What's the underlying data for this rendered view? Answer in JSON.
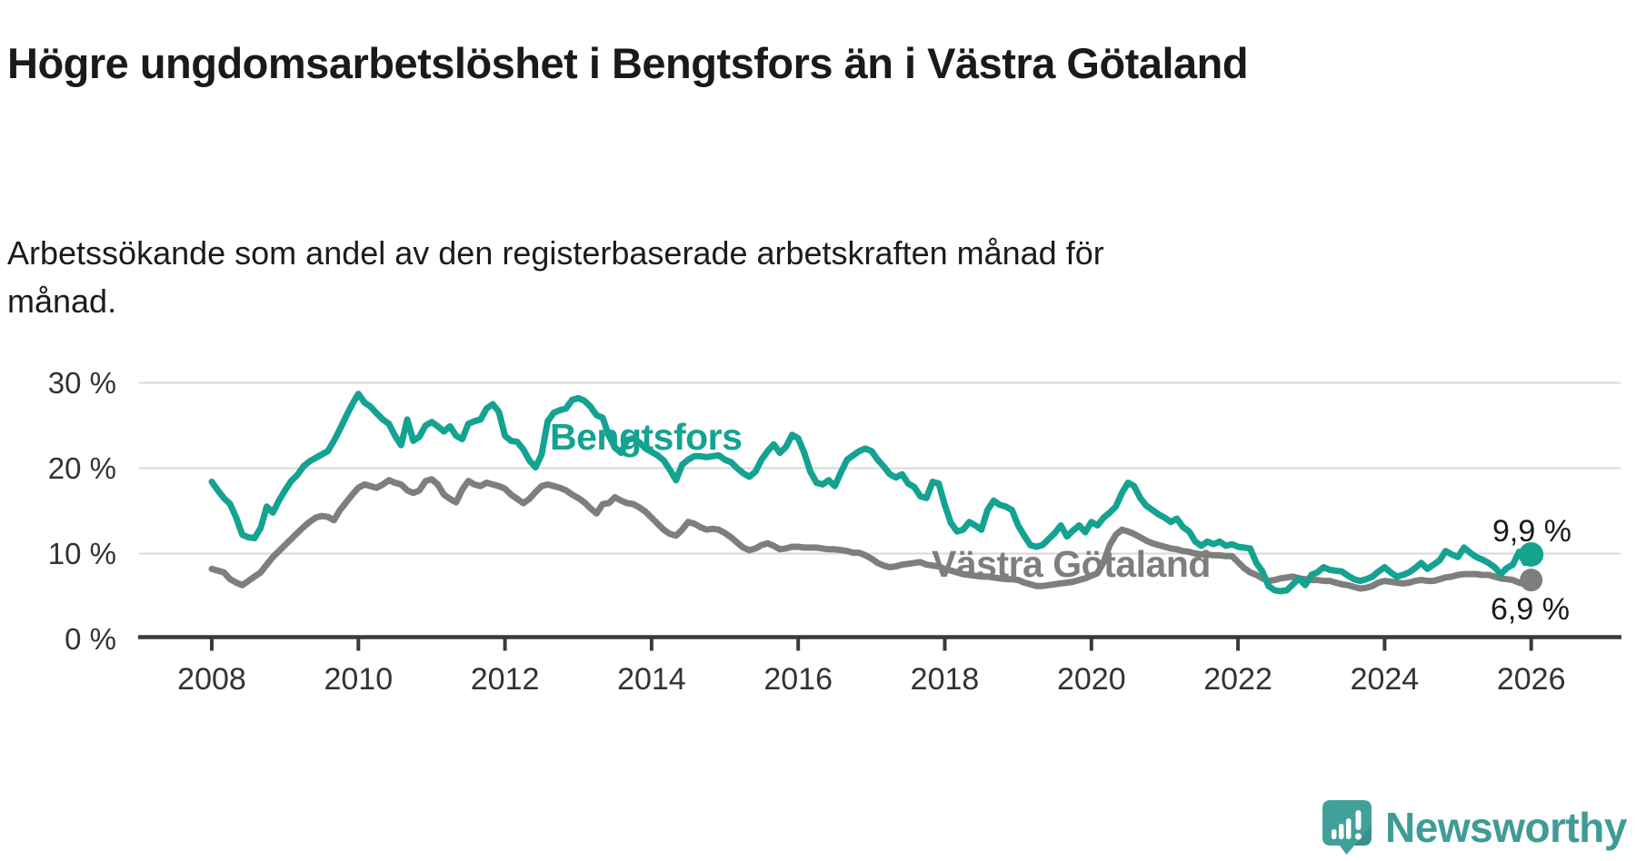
{
  "title": "Högre ungdomsarbetslöshet i Bengtsfors än i Västra Götaland",
  "subtitle": "Arbetssökande som andel av den registerbaserade arbetskraften månad för månad.",
  "footer": {
    "brand": "Newsworthy"
  },
  "colors": {
    "bengtsfors": "#14A291",
    "vastra_gotaland": "#7E7E7E",
    "gridline": "#D8D8D8",
    "axis": "#3A3A3A",
    "text": "#333333",
    "logo": "#3E9C95"
  },
  "chart_data": {
    "type": "line",
    "title": "Högre ungdomsarbetslöshet i Bengtsfors än i Västra Götaland",
    "subtitle": "Arbetssökande som andel av den registerbaserade arbetskraften månad för månad.",
    "unit": "%",
    "frequency": "monthly",
    "x_start": "2008-01",
    "x_end": "2026-01",
    "x_ticks": [
      "2008",
      "2010",
      "2012",
      "2014",
      "2016",
      "2018",
      "2020",
      "2022",
      "2024",
      "2026"
    ],
    "y_ticks": [
      "0 %",
      "10 %",
      "20 %",
      "30 %"
    ],
    "ylim": [
      0,
      31.5
    ],
    "grid": "horizontal",
    "legend_position": "inline-labels",
    "end_labels": {
      "bengtsfors": "9,9 %",
      "vastra_gotaland": "6,9 %"
    },
    "series": [
      {
        "name": "Västra Götaland",
        "color": "#7E7E7E",
        "values": [
          8.2,
          8.0,
          7.8,
          7.0,
          6.6,
          6.3,
          6.8,
          7.3,
          7.8,
          8.7,
          9.6,
          10.3,
          11.0,
          11.7,
          12.4,
          13.1,
          13.7,
          14.2,
          14.4,
          14.3,
          13.9,
          15.1,
          16.0,
          16.9,
          17.7,
          18.1,
          17.9,
          17.7,
          18.1,
          18.6,
          18.3,
          18.1,
          17.4,
          17.1,
          17.4,
          18.5,
          18.7,
          18.1,
          16.9,
          16.4,
          16.0,
          17.5,
          18.5,
          18.1,
          17.9,
          18.3,
          18.1,
          17.9,
          17.6,
          16.9,
          16.4,
          15.9,
          16.4,
          17.2,
          17.9,
          18.1,
          17.9,
          17.7,
          17.4,
          16.9,
          16.5,
          16.0,
          15.3,
          14.7,
          15.8,
          15.9,
          16.6,
          16.2,
          15.9,
          15.8,
          15.4,
          14.9,
          14.2,
          13.5,
          12.8,
          12.3,
          12.1,
          12.8,
          13.7,
          13.5,
          13.1,
          12.8,
          12.9,
          12.8,
          12.4,
          11.9,
          11.3,
          10.7,
          10.4,
          10.6,
          11.0,
          11.2,
          10.9,
          10.5,
          10.6,
          10.8,
          10.8,
          10.7,
          10.7,
          10.7,
          10.6,
          10.5,
          10.5,
          10.4,
          10.3,
          10.1,
          10.1,
          9.8,
          9.4,
          8.9,
          8.6,
          8.4,
          8.5,
          8.7,
          8.8,
          8.9,
          9.0,
          8.7,
          8.6,
          8.5,
          8.2,
          8.0,
          7.8,
          7.6,
          7.5,
          7.4,
          7.3,
          7.3,
          7.2,
          7.1,
          7.0,
          7.0,
          6.9,
          6.6,
          6.4,
          6.2,
          6.2,
          6.3,
          6.4,
          6.5,
          6.6,
          6.7,
          6.9,
          7.1,
          7.4,
          7.7,
          9.0,
          11.0,
          12.2,
          12.8,
          12.6,
          12.3,
          11.9,
          11.5,
          11.2,
          11.0,
          10.8,
          10.6,
          10.5,
          10.3,
          10.2,
          10.0,
          9.9,
          9.9,
          9.8,
          9.8,
          9.7,
          9.7,
          9.0,
          8.3,
          7.8,
          7.5,
          7.1,
          6.8,
          6.9,
          7.1,
          7.2,
          7.3,
          7.1,
          7.0,
          6.9,
          6.9,
          6.8,
          6.8,
          6.6,
          6.4,
          6.3,
          6.1,
          5.9,
          6.0,
          6.2,
          6.6,
          6.8,
          6.7,
          6.6,
          6.5,
          6.6,
          6.8,
          6.9,
          6.8,
          6.8,
          7.0,
          7.2,
          7.3,
          7.5,
          7.6,
          7.6,
          7.6,
          7.5,
          7.5,
          7.3,
          7.1,
          7.0,
          6.9,
          6.6,
          6.4,
          6.9
        ]
      },
      {
        "name": "Bengtsfors",
        "color": "#14A291",
        "values": [
          18.4,
          17.4,
          16.5,
          15.8,
          14.2,
          12.2,
          11.9,
          11.8,
          13.0,
          15.5,
          14.8,
          16.2,
          17.4,
          18.5,
          19.2,
          20.2,
          20.8,
          21.2,
          21.6,
          22.0,
          23.2,
          24.6,
          26.1,
          27.5,
          28.7,
          27.7,
          27.2,
          26.4,
          25.7,
          25.2,
          23.8,
          22.7,
          25.7,
          23.2,
          23.7,
          25.0,
          25.4,
          24.9,
          24.3,
          24.9,
          23.8,
          23.4,
          25.2,
          25.5,
          25.7,
          27.0,
          27.5,
          26.6,
          23.8,
          23.2,
          23.1,
          22.2,
          20.9,
          20.1,
          21.6,
          25.5,
          26.5,
          26.8,
          27.0,
          28.0,
          28.2,
          27.9,
          27.2,
          26.2,
          25.9,
          23.8,
          22.4,
          21.8,
          23.3,
          23.5,
          23.0,
          22.3,
          21.9,
          21.5,
          20.9,
          19.8,
          18.6,
          20.4,
          21.0,
          21.4,
          21.4,
          21.3,
          21.4,
          21.5,
          21.0,
          20.7,
          20.0,
          19.4,
          19.0,
          19.6,
          21.0,
          22.0,
          22.8,
          21.8,
          22.5,
          23.9,
          23.5,
          21.8,
          19.6,
          18.3,
          18.1,
          18.6,
          17.9,
          19.5,
          21.0,
          21.5,
          22.0,
          22.3,
          22.0,
          21.0,
          20.2,
          19.3,
          18.9,
          19.3,
          18.2,
          17.8,
          16.7,
          16.5,
          18.4,
          18.2,
          15.7,
          13.6,
          12.6,
          12.8,
          13.7,
          13.3,
          12.8,
          15.1,
          16.2,
          15.7,
          15.5,
          15.1,
          13.3,
          12.1,
          11.0,
          10.8,
          11.0,
          11.7,
          12.4,
          13.3,
          12.0,
          12.7,
          13.3,
          12.5,
          13.7,
          13.3,
          14.2,
          14.8,
          15.5,
          17.1,
          18.3,
          17.9,
          16.5,
          15.6,
          15.1,
          14.6,
          14.2,
          13.7,
          14.1,
          13.1,
          12.6,
          11.4,
          10.9,
          11.4,
          11.1,
          11.4,
          10.9,
          11.1,
          10.8,
          10.7,
          10.6,
          8.9,
          7.9,
          6.2,
          5.7,
          5.6,
          5.7,
          6.4,
          7.1,
          6.3,
          7.5,
          7.8,
          8.4,
          8.1,
          8.0,
          7.9,
          7.4,
          7.0,
          6.8,
          7.0,
          7.3,
          7.9,
          8.4,
          7.8,
          7.3,
          7.5,
          7.8,
          8.3,
          8.9,
          8.2,
          8.7,
          9.2,
          10.3,
          9.9,
          9.6,
          10.7,
          10.1,
          9.6,
          9.3,
          8.9,
          8.4,
          7.6,
          8.3,
          8.7,
          10.2,
          8.9,
          9.9
        ]
      }
    ]
  }
}
